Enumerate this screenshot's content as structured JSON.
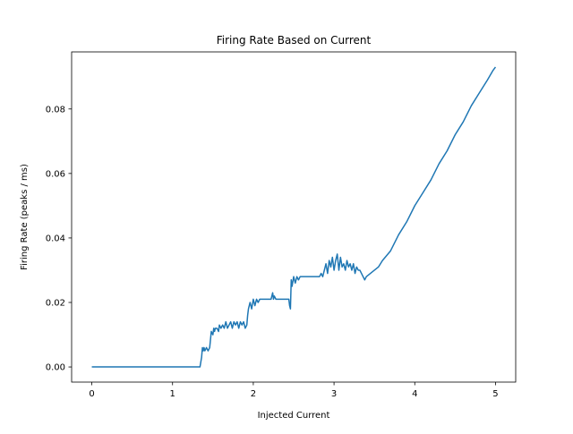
{
  "chart_data": {
    "type": "line",
    "title": "Firing Rate Based on Current",
    "xlabel": "Injected Current",
    "ylabel": "Firing Rate (peaks / ms)",
    "xlim": [
      -0.25,
      5.25
    ],
    "ylim": [
      -0.0047,
      0.0977
    ],
    "xticks": [
      0,
      1,
      2,
      3,
      4,
      5
    ],
    "xtick_labels": [
      "0",
      "1",
      "2",
      "3",
      "4",
      "5"
    ],
    "yticks": [
      0.0,
      0.02,
      0.04,
      0.06,
      0.08
    ],
    "ytick_labels": [
      "0.00",
      "0.02",
      "0.04",
      "0.06",
      "0.08"
    ],
    "grid": false,
    "legend": "none",
    "colors": {
      "line": "#1f77b4",
      "axes": "#000000",
      "background": "#ffffff"
    },
    "series": [
      {
        "x": [
          0.0,
          0.5,
          1.0,
          1.34,
          1.36,
          1.37,
          1.38,
          1.39,
          1.4,
          1.42,
          1.44,
          1.46,
          1.48,
          1.5,
          1.51,
          1.52,
          1.53,
          1.55,
          1.57,
          1.58,
          1.6,
          1.62,
          1.64,
          1.66,
          1.68,
          1.7,
          1.72,
          1.74,
          1.76,
          1.78,
          1.8,
          1.82,
          1.84,
          1.86,
          1.88,
          1.9,
          1.92,
          1.93,
          1.94,
          1.96,
          1.98,
          2.0,
          2.02,
          2.04,
          2.06,
          2.08,
          2.1,
          2.12,
          2.14,
          2.16,
          2.18,
          2.2,
          2.22,
          2.24,
          2.25,
          2.26,
          2.28,
          2.3,
          2.32,
          2.35,
          2.4,
          2.44,
          2.45,
          2.46,
          2.47,
          2.48,
          2.5,
          2.52,
          2.54,
          2.56,
          2.58,
          2.6,
          2.65,
          2.7,
          2.75,
          2.8,
          2.82,
          2.84,
          2.86,
          2.88,
          2.9,
          2.92,
          2.94,
          2.96,
          2.98,
          3.0,
          3.02,
          3.04,
          3.06,
          3.08,
          3.1,
          3.12,
          3.14,
          3.16,
          3.18,
          3.2,
          3.22,
          3.24,
          3.26,
          3.28,
          3.3,
          3.32,
          3.34,
          3.36,
          3.38,
          3.4,
          3.45,
          3.5,
          3.55,
          3.6,
          3.7,
          3.8,
          3.9,
          4.0,
          4.1,
          4.2,
          4.3,
          4.4,
          4.5,
          4.6,
          4.7,
          4.8,
          4.9,
          4.97,
          5.0
        ],
        "y": [
          0.0,
          0.0,
          0.0,
          0.0,
          0.003,
          0.006,
          0.005,
          0.006,
          0.005,
          0.006,
          0.005,
          0.006,
          0.011,
          0.01,
          0.012,
          0.011,
          0.012,
          0.012,
          0.011,
          0.013,
          0.012,
          0.013,
          0.012,
          0.014,
          0.012,
          0.013,
          0.014,
          0.012,
          0.014,
          0.013,
          0.014,
          0.012,
          0.014,
          0.013,
          0.014,
          0.012,
          0.013,
          0.016,
          0.018,
          0.02,
          0.018,
          0.021,
          0.019,
          0.021,
          0.02,
          0.021,
          0.021,
          0.021,
          0.021,
          0.021,
          0.021,
          0.021,
          0.021,
          0.023,
          0.021,
          0.022,
          0.021,
          0.021,
          0.021,
          0.021,
          0.021,
          0.021,
          0.019,
          0.018,
          0.027,
          0.025,
          0.028,
          0.026,
          0.028,
          0.027,
          0.028,
          0.028,
          0.028,
          0.028,
          0.028,
          0.028,
          0.028,
          0.029,
          0.028,
          0.03,
          0.032,
          0.029,
          0.033,
          0.031,
          0.034,
          0.03,
          0.033,
          0.035,
          0.03,
          0.034,
          0.031,
          0.032,
          0.03,
          0.033,
          0.031,
          0.032,
          0.03,
          0.032,
          0.029,
          0.031,
          0.03,
          0.03,
          0.029,
          0.028,
          0.027,
          0.028,
          0.029,
          0.03,
          0.031,
          0.033,
          0.036,
          0.041,
          0.045,
          0.05,
          0.054,
          0.058,
          0.063,
          0.067,
          0.072,
          0.076,
          0.081,
          0.085,
          0.089,
          0.092,
          0.093
        ]
      }
    ]
  }
}
